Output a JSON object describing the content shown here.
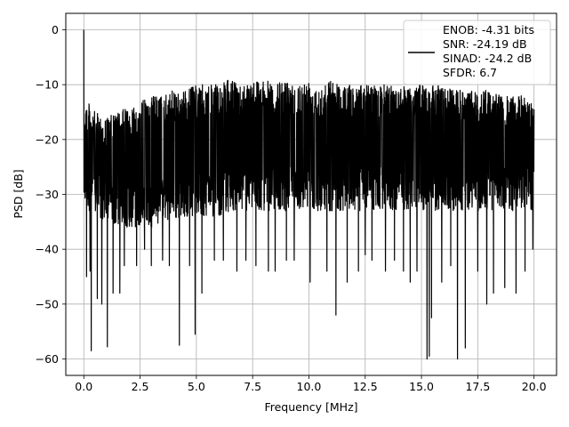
{
  "chart_data": {
    "type": "line",
    "title": "",
    "xlabel": "Frequency [MHz]",
    "ylabel": "PSD [dB]",
    "xlim": [
      -0.8,
      21.0
    ],
    "ylim": [
      -63.0,
      3.0
    ],
    "xticks": [
      0.0,
      2.5,
      5.0,
      7.5,
      10.0,
      12.5,
      15.0,
      17.5,
      20.0
    ],
    "xtick_labels": [
      "0.0",
      "2.5",
      "5.0",
      "7.5",
      "10.0",
      "12.5",
      "15.0",
      "17.5",
      "20.0"
    ],
    "yticks": [
      0,
      -10,
      -20,
      -30,
      -40,
      -50,
      -60
    ],
    "ytick_labels": [
      "0",
      "−10",
      "−20",
      "−30",
      "−40",
      "−50",
      "−60"
    ],
    "grid": true,
    "legend_position": "top-right",
    "line_color": "#000000",
    "legend": {
      "entries": [
        "ENOB: -4.31 bits",
        "SNR: -24.19 dB",
        "SINAD: -24.2 dB",
        "SFDR: 6.7"
      ]
    },
    "series": [
      {
        "x_range": [
          0.0,
          20.0
        ],
        "peak": {
          "x": 0.0,
          "y": 0.0
        },
        "upper_envelope": [
          [
            0.0,
            -12
          ],
          [
            0.5,
            -15
          ],
          [
            1.0,
            -16
          ],
          [
            1.5,
            -15
          ],
          [
            2.0,
            -14
          ],
          [
            2.5,
            -13
          ],
          [
            3.0,
            -12
          ],
          [
            3.5,
            -12
          ],
          [
            4.0,
            -11
          ],
          [
            4.5,
            -11
          ],
          [
            5.0,
            -10
          ],
          [
            5.5,
            -10
          ],
          [
            6.0,
            -10
          ],
          [
            6.5,
            -9
          ],
          [
            7.0,
            -10
          ],
          [
            7.5,
            -9
          ],
          [
            8.0,
            -9
          ],
          [
            8.5,
            -10
          ],
          [
            9.0,
            -9
          ],
          [
            9.5,
            -10
          ],
          [
            10.0,
            -9
          ],
          [
            10.5,
            -10
          ],
          [
            11.0,
            -9
          ],
          [
            11.5,
            -10
          ],
          [
            12.0,
            -10
          ],
          [
            12.5,
            -10
          ],
          [
            13.0,
            -10
          ],
          [
            13.5,
            -10
          ],
          [
            14.0,
            -10
          ],
          [
            14.5,
            -10
          ],
          [
            15.0,
            -10
          ],
          [
            15.5,
            -10
          ],
          [
            16.0,
            -10
          ],
          [
            16.5,
            -11
          ],
          [
            17.0,
            -11
          ],
          [
            17.5,
            -11
          ],
          [
            18.0,
            -11
          ],
          [
            18.5,
            -12
          ],
          [
            19.0,
            -12
          ],
          [
            19.5,
            -12
          ],
          [
            20.0,
            -13
          ]
        ],
        "lower_envelope": [
          [
            0.0,
            -32
          ],
          [
            0.5,
            -34
          ],
          [
            1.0,
            -35
          ],
          [
            1.5,
            -36
          ],
          [
            2.0,
            -36
          ],
          [
            2.5,
            -36
          ],
          [
            3.0,
            -36
          ],
          [
            3.5,
            -35
          ],
          [
            4.0,
            -35
          ],
          [
            4.5,
            -34
          ],
          [
            5.0,
            -34
          ],
          [
            5.5,
            -34
          ],
          [
            6.0,
            -34
          ],
          [
            6.5,
            -33
          ],
          [
            7.0,
            -33
          ],
          [
            7.5,
            -33
          ],
          [
            8.0,
            -33
          ],
          [
            8.5,
            -33
          ],
          [
            9.0,
            -33
          ],
          [
            9.5,
            -33
          ],
          [
            10.0,
            -33
          ],
          [
            10.5,
            -33
          ],
          [
            11.0,
            -33
          ],
          [
            11.5,
            -33
          ],
          [
            12.0,
            -33
          ],
          [
            12.5,
            -33
          ],
          [
            13.0,
            -33
          ],
          [
            13.5,
            -33
          ],
          [
            14.0,
            -33
          ],
          [
            14.5,
            -33
          ],
          [
            15.0,
            -33
          ],
          [
            15.5,
            -33
          ],
          [
            16.0,
            -33
          ],
          [
            16.5,
            -33
          ],
          [
            17.0,
            -33
          ],
          [
            17.5,
            -33
          ],
          [
            18.0,
            -33
          ],
          [
            18.5,
            -33
          ],
          [
            19.0,
            -33
          ],
          [
            19.5,
            -33
          ],
          [
            20.0,
            -33
          ]
        ],
        "spikes": [
          [
            0.05,
            -20
          ],
          [
            0.12,
            -45
          ],
          [
            0.28,
            -44
          ],
          [
            0.33,
            -58.5
          ],
          [
            0.6,
            -49
          ],
          [
            0.8,
            -50
          ],
          [
            1.05,
            -57.8
          ],
          [
            1.3,
            -48
          ],
          [
            1.6,
            -48
          ],
          [
            1.8,
            -43
          ],
          [
            2.35,
            -43
          ],
          [
            2.7,
            -40
          ],
          [
            3.0,
            -43
          ],
          [
            3.5,
            -42
          ],
          [
            3.8,
            -43
          ],
          [
            4.25,
            -57.5
          ],
          [
            4.7,
            -43
          ],
          [
            4.95,
            -55.5
          ],
          [
            5.25,
            -48
          ],
          [
            5.8,
            -42
          ],
          [
            6.2,
            -42
          ],
          [
            6.8,
            -44
          ],
          [
            7.2,
            -42
          ],
          [
            7.65,
            -43
          ],
          [
            8.2,
            -44
          ],
          [
            8.5,
            -44
          ],
          [
            9.0,
            -42
          ],
          [
            9.35,
            -42
          ],
          [
            10.05,
            -46
          ],
          [
            10.8,
            -44
          ],
          [
            11.2,
            -52
          ],
          [
            11.7,
            -46
          ],
          [
            12.2,
            -44
          ],
          [
            12.5,
            -41
          ],
          [
            12.8,
            -42
          ],
          [
            13.4,
            -44
          ],
          [
            13.8,
            -42
          ],
          [
            14.2,
            -44
          ],
          [
            14.5,
            -46
          ],
          [
            14.8,
            -44
          ],
          [
            15.25,
            -60
          ],
          [
            15.35,
            -59.5
          ],
          [
            15.45,
            -52.5
          ],
          [
            15.9,
            -46
          ],
          [
            16.3,
            -43
          ],
          [
            16.6,
            -60
          ],
          [
            16.95,
            -58
          ],
          [
            17.5,
            -44
          ],
          [
            17.9,
            -50
          ],
          [
            18.2,
            -48
          ],
          [
            18.7,
            -47
          ],
          [
            19.2,
            -48
          ],
          [
            19.6,
            -44
          ],
          [
            19.95,
            -40
          ]
        ]
      }
    ]
  }
}
